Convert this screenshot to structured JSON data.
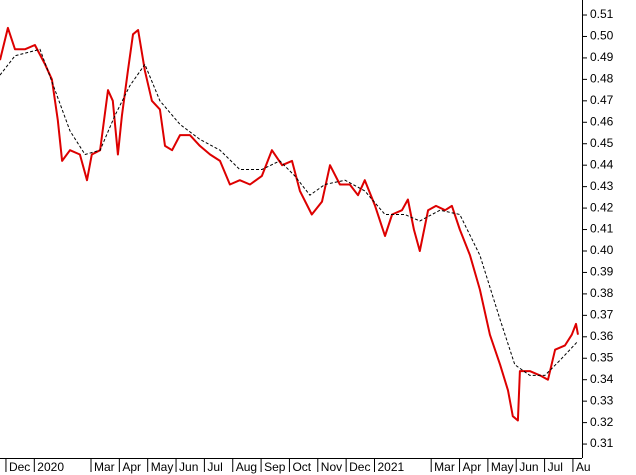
{
  "chart_data": {
    "type": "line",
    "xlim": [
      -0.21,
      20.32
    ],
    "ylim": [
      0.3035,
      0.517
    ],
    "xticks": [
      {
        "value": 0,
        "label": "Dec"
      },
      {
        "value": 1,
        "label": "2020"
      },
      {
        "value": 3,
        "label": "Mar"
      },
      {
        "value": 4,
        "label": "Apr"
      },
      {
        "value": 5,
        "label": "May"
      },
      {
        "value": 6,
        "label": "Jun"
      },
      {
        "value": 7,
        "label": "Jul"
      },
      {
        "value": 8,
        "label": "Aug"
      },
      {
        "value": 9,
        "label": "Sep"
      },
      {
        "value": 10,
        "label": "Oct"
      },
      {
        "value": 11,
        "label": "Nov"
      },
      {
        "value": 12,
        "label": "Dec"
      },
      {
        "value": 13,
        "label": "2021"
      },
      {
        "value": 15,
        "label": "Mar"
      },
      {
        "value": 16,
        "label": "Apr"
      },
      {
        "value": 17,
        "label": "May"
      },
      {
        "value": 18,
        "label": "Jun"
      },
      {
        "value": 19,
        "label": "Jul"
      },
      {
        "value": 20,
        "label": "Au"
      }
    ],
    "yticks": [
      0.31,
      0.32,
      0.33,
      0.34,
      0.35,
      0.36,
      0.37,
      0.38,
      0.39,
      {
        "value": 0.4,
        "label": "0.40"
      },
      0.41,
      0.42,
      0.43,
      0.44,
      0.45,
      0.46,
      0.47,
      0.48,
      0.49,
      {
        "value": 0.5,
        "label": "0.50"
      },
      0.51
    ],
    "series": [
      {
        "color": "#dd0000",
        "dash": false,
        "x": [
          -0.21,
          0.07,
          0.32,
          0.67,
          1.02,
          1.38,
          1.62,
          1.83,
          1.98,
          2.26,
          2.61,
          2.86,
          3.03,
          3.32,
          3.6,
          3.77,
          3.95,
          4.09,
          4.3,
          4.48,
          4.66,
          4.9,
          5.15,
          5.43,
          5.61,
          5.86,
          6.14,
          6.49,
          6.84,
          7.2,
          7.55,
          7.9,
          8.25,
          8.61,
          9.03,
          9.38,
          9.74,
          10.09,
          10.37,
          10.79,
          11.15,
          11.43,
          11.78,
          12.13,
          12.42,
          12.66,
          13.02,
          13.37,
          13.62,
          13.97,
          14.18,
          14.39,
          14.6,
          14.89,
          15.17,
          15.49,
          15.73,
          16.01,
          16.37,
          16.72,
          17.07,
          17.43,
          17.71,
          17.88,
          18.06,
          18.13,
          18.48,
          18.84,
          19.12,
          19.37,
          19.72,
          19.96,
          20.11,
          20.18
        ],
        "values": [
          0.489,
          0.504,
          0.494,
          0.494,
          0.496,
          0.487,
          0.48,
          0.461,
          0.442,
          0.447,
          0.445,
          0.433,
          0.445,
          0.447,
          0.475,
          0.47,
          0.445,
          0.463,
          0.484,
          0.501,
          0.503,
          0.484,
          0.47,
          0.466,
          0.449,
          0.447,
          0.454,
          0.454,
          0.449,
          0.445,
          0.442,
          0.431,
          0.433,
          0.431,
          0.435,
          0.447,
          0.44,
          0.442,
          0.428,
          0.417,
          0.423,
          0.44,
          0.431,
          0.431,
          0.426,
          0.433,
          0.421,
          0.407,
          0.417,
          0.419,
          0.424,
          0.41,
          0.4,
          0.419,
          0.421,
          0.419,
          0.421,
          0.41,
          0.398,
          0.382,
          0.361,
          0.347,
          0.335,
          0.323,
          0.321,
          0.344,
          0.344,
          0.342,
          0.34,
          0.354,
          0.356,
          0.361,
          0.366,
          0.361
        ]
      },
      {
        "color": "#000000",
        "dash": true,
        "x": [
          -0.21,
          0.32,
          1.2,
          1.73,
          2.26,
          2.79,
          3.32,
          3.84,
          4.37,
          4.9,
          5.43,
          6.14,
          6.84,
          7.55,
          8.25,
          9.03,
          9.66,
          10.19,
          10.72,
          11.25,
          11.96,
          12.66,
          13.37,
          14.07,
          14.6,
          15.31,
          16.01,
          16.72,
          17.43,
          17.95,
          18.48,
          19.01,
          19.54,
          20.18
        ],
        "values": [
          0.482,
          0.491,
          0.494,
          0.475,
          0.456,
          0.445,
          0.447,
          0.463,
          0.477,
          0.487,
          0.47,
          0.459,
          0.452,
          0.447,
          0.438,
          0.438,
          0.442,
          0.435,
          0.426,
          0.431,
          0.433,
          0.428,
          0.417,
          0.417,
          0.414,
          0.419,
          0.417,
          0.398,
          0.368,
          0.347,
          0.342,
          0.342,
          0.349,
          0.358
        ]
      }
    ]
  }
}
